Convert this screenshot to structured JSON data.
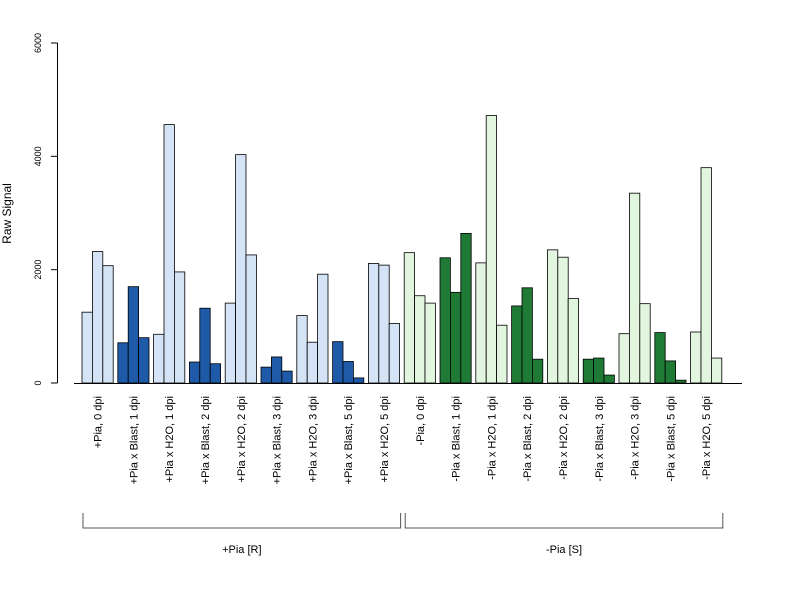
{
  "chart_data": {
    "type": "bar",
    "ylabel": "Raw Signal",
    "ylim": [
      0,
      6000
    ],
    "yticks": [
      0,
      2000,
      4000,
      6000
    ],
    "legend": "none",
    "colors": {
      "plus_light": "#d4e4f6",
      "plus_dark": "#1f5aa8",
      "minus_light": "#e2f5de",
      "minus_dark": "#1e7a35",
      "stroke": "#000000",
      "axis": "#000000",
      "bracket": "#555555"
    },
    "categories": [
      "+Pia, 0 dpi",
      "+Pia x Blast, 1 dpi",
      "+Pia x H2O, 1 dpi",
      "+Pia x Blast, 2 dpi",
      "+Pia x H2O, 2 dpi",
      "+Pia x Blast, 3 dpi",
      "+Pia x H2O, 3 dpi",
      "+Pia x Blast, 5 dpi",
      "+Pia x H2O, 5 dpi",
      "-Pia, 0 dpi",
      "-Pia x Blast, 1 dpi",
      "-Pia x H2O, 1 dpi",
      "-Pia x Blast, 2 dpi",
      "-Pia x H2O, 2 dpi",
      "-Pia x Blast, 3 dpi",
      "-Pia x H2O, 3 dpi",
      "-Pia x Blast, 5 dpi",
      "-Pia x H2O, 5 dpi"
    ],
    "category_group": [
      "plus",
      "plus",
      "plus",
      "plus",
      "plus",
      "plus",
      "plus",
      "plus",
      "plus",
      "minus",
      "minus",
      "minus",
      "minus",
      "minus",
      "minus",
      "minus",
      "minus",
      "minus"
    ],
    "category_shade": [
      "light",
      "dark",
      "light",
      "dark",
      "light",
      "dark",
      "light",
      "dark",
      "light",
      "light",
      "dark",
      "light",
      "dark",
      "light",
      "dark",
      "light",
      "dark",
      "light"
    ],
    "replicates": [
      [
        1250,
        2320,
        2070
      ],
      [
        710,
        1700,
        800
      ],
      [
        860,
        4560,
        1960
      ],
      [
        370,
        1320,
        340
      ],
      [
        1410,
        4030,
        2260
      ],
      [
        280,
        460,
        210
      ],
      [
        1190,
        720,
        1920
      ],
      [
        730,
        380,
        90
      ],
      [
        2110,
        2080,
        1050
      ],
      [
        2300,
        1540,
        1410
      ],
      [
        2210,
        1600,
        2640
      ],
      [
        2120,
        4720,
        1020
      ],
      [
        1360,
        1680,
        420
      ],
      [
        2350,
        2220,
        1490
      ],
      [
        420,
        440,
        140
      ],
      [
        870,
        3350,
        1400
      ],
      [
        890,
        390,
        50
      ],
      [
        900,
        3800,
        440
      ]
    ],
    "groups": [
      {
        "label": "+Pia [R]",
        "first": 0,
        "last": 8
      },
      {
        "label": "-Pia [S]",
        "first": 9,
        "last": 17
      }
    ]
  }
}
